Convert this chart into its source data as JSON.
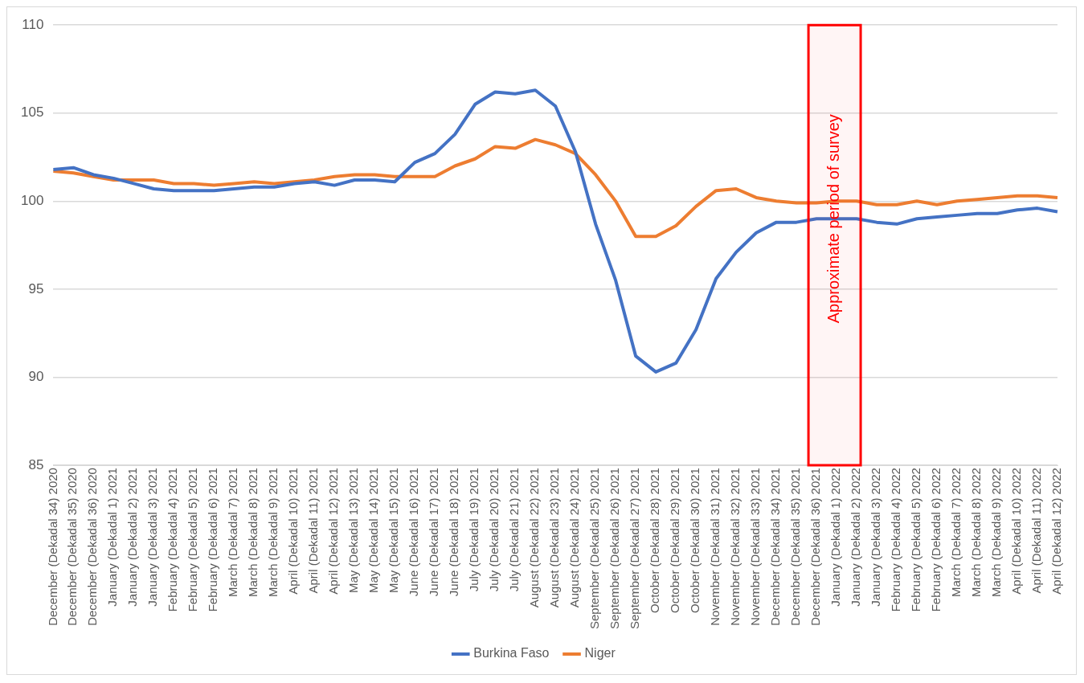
{
  "chart_data": {
    "type": "line",
    "categories": [
      "December (Dekadal 34) 2020",
      "December (Dekadal 35) 2020",
      "December (Dekadal 36) 2020",
      "January (Dekadal 1) 2021",
      "January (Dekadal 2) 2021",
      "January (Dekadal 3) 2021",
      "February (Dekadal 4) 2021",
      "February (Dekadal 5) 2021",
      "February (Dekadal 6) 2021",
      "March (Dekadal 7) 2021",
      "March (Dekadal 8) 2021",
      "March (Dekadal 9) 2021",
      "April (Dekadal 10) 2021",
      "April (Dekadal 11) 2021",
      "April (Dekadal 12) 2021",
      "May (Dekadal 13) 2021",
      "May (Dekadal 14) 2021",
      "May (Dekadal 15) 2021",
      "June (Dekadal 16) 2021",
      "June (Dekadal 17) 2021",
      "June (Dekadal 18) 2021",
      "July (Dekadal 19) 2021",
      "July (Dekadal 20) 2021",
      "July (Dekadal 21) 2021",
      "August (Dekadal 22) 2021",
      "August (Dekadal 23) 2021",
      "August (Dekadal 24) 2021",
      "September (Dekadal 25) 2021",
      "September (Dekadal 26) 2021",
      "September (Dekadal 27) 2021",
      "October (Dekadal 28) 2021",
      "October (Dekadal 29) 2021",
      "October (Dekadal 30) 2021",
      "November (Dekadal 31) 2021",
      "November (Dekadal 32) 2021",
      "November (Dekadal 33) 2021",
      "December (Dekadal 34) 2021",
      "December (Dekadal 35) 2021",
      "December (Dekadal 36) 2021",
      "January (Dekadal 1) 2022",
      "January (Dekadal 2) 2022",
      "January (Dekadal 3) 2022",
      "February (Dekadal 4) 2022",
      "February (Dekadal 5) 2022",
      "February (Dekadal 6) 2022",
      "March (Dekadal 7) 2022",
      "March (Dekadal 8) 2022",
      "March (Dekadal 9) 2022",
      "April (Dekadal 10) 2022",
      "April (Dekadal 11) 2022",
      "April (Dekadal 12) 2022"
    ],
    "series": [
      {
        "name": "Burkina Faso",
        "color": "#4472c4",
        "values": [
          101.8,
          101.9,
          101.5,
          101.3,
          101.0,
          100.7,
          100.6,
          100.6,
          100.6,
          100.7,
          100.8,
          100.8,
          101.0,
          101.1,
          100.9,
          101.2,
          101.2,
          101.1,
          102.2,
          102.7,
          103.8,
          105.5,
          106.2,
          106.1,
          106.3,
          105.4,
          102.8,
          98.7,
          95.5,
          91.2,
          90.3,
          90.8,
          92.7,
          95.6,
          97.1,
          98.2,
          98.8,
          98.8,
          99.0,
          99.0,
          99.0,
          98.8,
          98.7,
          99.0,
          99.1,
          99.2,
          99.3,
          99.3,
          99.5,
          99.6,
          99.4
        ]
      },
      {
        "name": "Niger",
        "color": "#ed7d31",
        "values": [
          101.7,
          101.6,
          101.4,
          101.2,
          101.2,
          101.2,
          101.0,
          101.0,
          100.9,
          101.0,
          101.1,
          101.0,
          101.1,
          101.2,
          101.4,
          101.5,
          101.5,
          101.4,
          101.4,
          101.4,
          102.0,
          102.4,
          103.1,
          103.0,
          103.5,
          103.2,
          102.7,
          101.5,
          100.0,
          98.0,
          98.0,
          98.6,
          99.7,
          100.6,
          100.7,
          100.2,
          100.0,
          99.9,
          99.9,
          100.0,
          100.0,
          99.8,
          99.8,
          100.0,
          99.8,
          100.0,
          100.1,
          100.2,
          100.3,
          100.3,
          100.2
        ]
      }
    ],
    "ylim": [
      85,
      110
    ],
    "yticks": [
      85,
      90,
      95,
      100,
      105,
      110
    ],
    "grid": "y",
    "legend": "bottom",
    "marker": "none",
    "line_style": "solid",
    "bands": [
      {
        "axis": "x",
        "from": "December (Dekadal 36) 2021",
        "to": "January (Dekadal 2) 2022",
        "label": "Approximate period of survey",
        "color": "#ff0000"
      }
    ]
  }
}
